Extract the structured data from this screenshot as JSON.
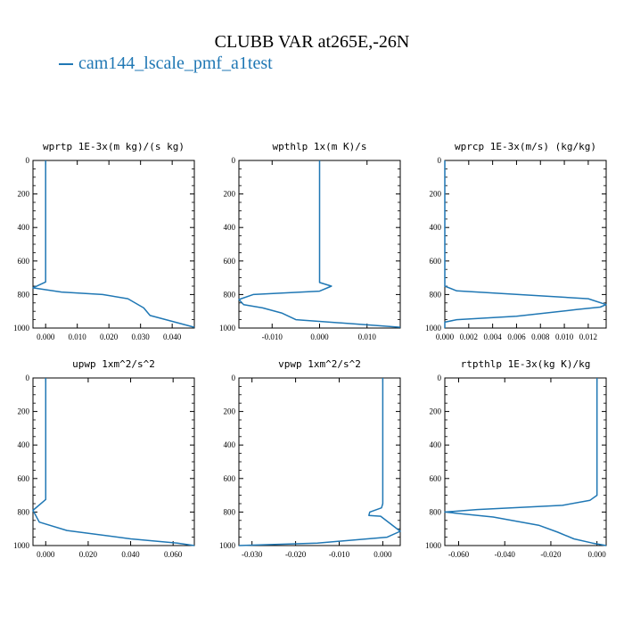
{
  "title": "CLUBB VAR at265E,-26N",
  "legend": {
    "label": "cam144_lscale_pmf_a1test",
    "color": "#1f77b4"
  },
  "chart_data": [
    {
      "type": "line",
      "title": "wprtp  1E-3x(m kg)/(s kg)",
      "xlim": [
        -0.004,
        0.047
      ],
      "ylim": [
        1000,
        0
      ],
      "xticks": [
        0.0,
        0.01,
        0.02,
        0.03,
        0.04
      ],
      "xticklabels": [
        "0.000",
        "0.010",
        "0.020",
        "0.030",
        "0.040"
      ],
      "yticks": [
        0,
        200,
        400,
        600,
        800,
        1000
      ],
      "yticklabels": [
        "0",
        "200",
        "400",
        "600",
        "800",
        "1000"
      ],
      "x": [
        0.0,
        0.0,
        0.0,
        0.0,
        -0.004,
        0.005,
        0.018,
        0.026,
        0.031,
        0.033,
        0.04,
        0.047
      ],
      "y": [
        0,
        300,
        600,
        725,
        760,
        785,
        800,
        825,
        880,
        925,
        960,
        995
      ]
    },
    {
      "type": "line",
      "title": "wpthlp  1x(m K)/s",
      "xlim": [
        -0.017,
        0.017
      ],
      "ylim": [
        1000,
        0
      ],
      "xticks": [
        -0.01,
        0.0,
        0.01
      ],
      "xticklabels": [
        "-0.010",
        "0.000",
        "0.010"
      ],
      "yticks": [
        0,
        200,
        400,
        600,
        800,
        1000
      ],
      "yticklabels": [
        "0",
        "200",
        "400",
        "600",
        "800",
        "1000"
      ],
      "x": [
        0.0,
        0.0,
        0.0,
        0.0,
        0.0025,
        0.0,
        -0.014,
        -0.017,
        -0.016,
        -0.012,
        -0.008,
        -0.005,
        0.017
      ],
      "y": [
        0,
        300,
        600,
        728,
        750,
        780,
        800,
        830,
        860,
        880,
        910,
        950,
        995
      ]
    },
    {
      "type": "line",
      "title": "wprcp  1E-3x(m/s) (kg/kg)",
      "xlim": [
        0.0,
        0.0135
      ],
      "ylim": [
        1000,
        0
      ],
      "xticks": [
        0.0,
        0.002,
        0.004,
        0.006,
        0.008,
        0.01,
        0.012
      ],
      "xticklabels": [
        "0.000",
        "0.002",
        "0.004",
        "0.006",
        "0.008",
        "0.010",
        "0.012"
      ],
      "yticks": [
        0,
        200,
        400,
        600,
        800,
        1000
      ],
      "yticklabels": [
        "0",
        "200",
        "400",
        "600",
        "800",
        "1000"
      ],
      "x": [
        0.0,
        0.0,
        0.0,
        0.0,
        0.001,
        0.012,
        0.0135,
        0.013,
        0.011,
        0.006,
        0.001,
        0.0,
        0.0
      ],
      "y": [
        0,
        300,
        600,
        750,
        778,
        825,
        860,
        875,
        890,
        930,
        950,
        965,
        1000
      ]
    },
    {
      "type": "line",
      "title": "upwp  1xm^2/s^2",
      "xlim": [
        -0.006,
        0.07
      ],
      "ylim": [
        1000,
        0
      ],
      "xticks": [
        0.0,
        0.02,
        0.04,
        0.06
      ],
      "xticklabels": [
        "0.000",
        "0.020",
        "0.040",
        "0.060"
      ],
      "yticks": [
        0,
        200,
        400,
        600,
        800,
        1000
      ],
      "yticklabels": [
        "0",
        "200",
        "400",
        "600",
        "800",
        "1000"
      ],
      "x": [
        0.0,
        0.0,
        0.0,
        0.0,
        -0.006,
        -0.003,
        0.01,
        0.04,
        0.062,
        0.07
      ],
      "y": [
        0,
        300,
        600,
        725,
        790,
        860,
        910,
        960,
        985,
        1000
      ]
    },
    {
      "type": "line",
      "title": "vpwp  1xm^2/s^2",
      "xlim": [
        -0.033,
        0.004
      ],
      "ylim": [
        1000,
        0
      ],
      "xticks": [
        -0.03,
        -0.02,
        -0.01,
        0.0
      ],
      "xticklabels": [
        "-0.030",
        "-0.020",
        "-0.010",
        "0.000"
      ],
      "yticks": [
        0,
        200,
        400,
        600,
        800,
        1000
      ],
      "yticklabels": [
        "0",
        "200",
        "400",
        "600",
        "800",
        "1000"
      ],
      "x": [
        0.0,
        0.0,
        0.0,
        0.0,
        -0.0003,
        -0.003,
        -0.0032,
        -0.0005,
        0.004,
        0.001,
        -0.015,
        -0.033
      ],
      "y": [
        0,
        300,
        600,
        750,
        775,
        800,
        820,
        825,
        915,
        950,
        985,
        1000
      ]
    },
    {
      "type": "line",
      "title": "rtpthlp  1E-3x(kg K)/kg",
      "xlim": [
        -0.066,
        0.004
      ],
      "ylim": [
        1000,
        0
      ],
      "xticks": [
        -0.06,
        -0.04,
        -0.02,
        0.0
      ],
      "xticklabels": [
        "-0.060",
        "-0.040",
        "-0.020",
        "0.000"
      ],
      "yticks": [
        0,
        200,
        400,
        600,
        800,
        1000
      ],
      "yticklabels": [
        "0",
        "200",
        "400",
        "600",
        "800",
        "1000"
      ],
      "x": [
        0.0,
        0.0,
        0.0,
        0.0,
        -0.003,
        -0.015,
        -0.052,
        -0.066,
        -0.045,
        -0.025,
        -0.017,
        -0.01,
        -0.002,
        0.004
      ],
      "y": [
        0,
        300,
        600,
        700,
        730,
        760,
        785,
        800,
        830,
        880,
        920,
        960,
        985,
        1000
      ]
    }
  ]
}
